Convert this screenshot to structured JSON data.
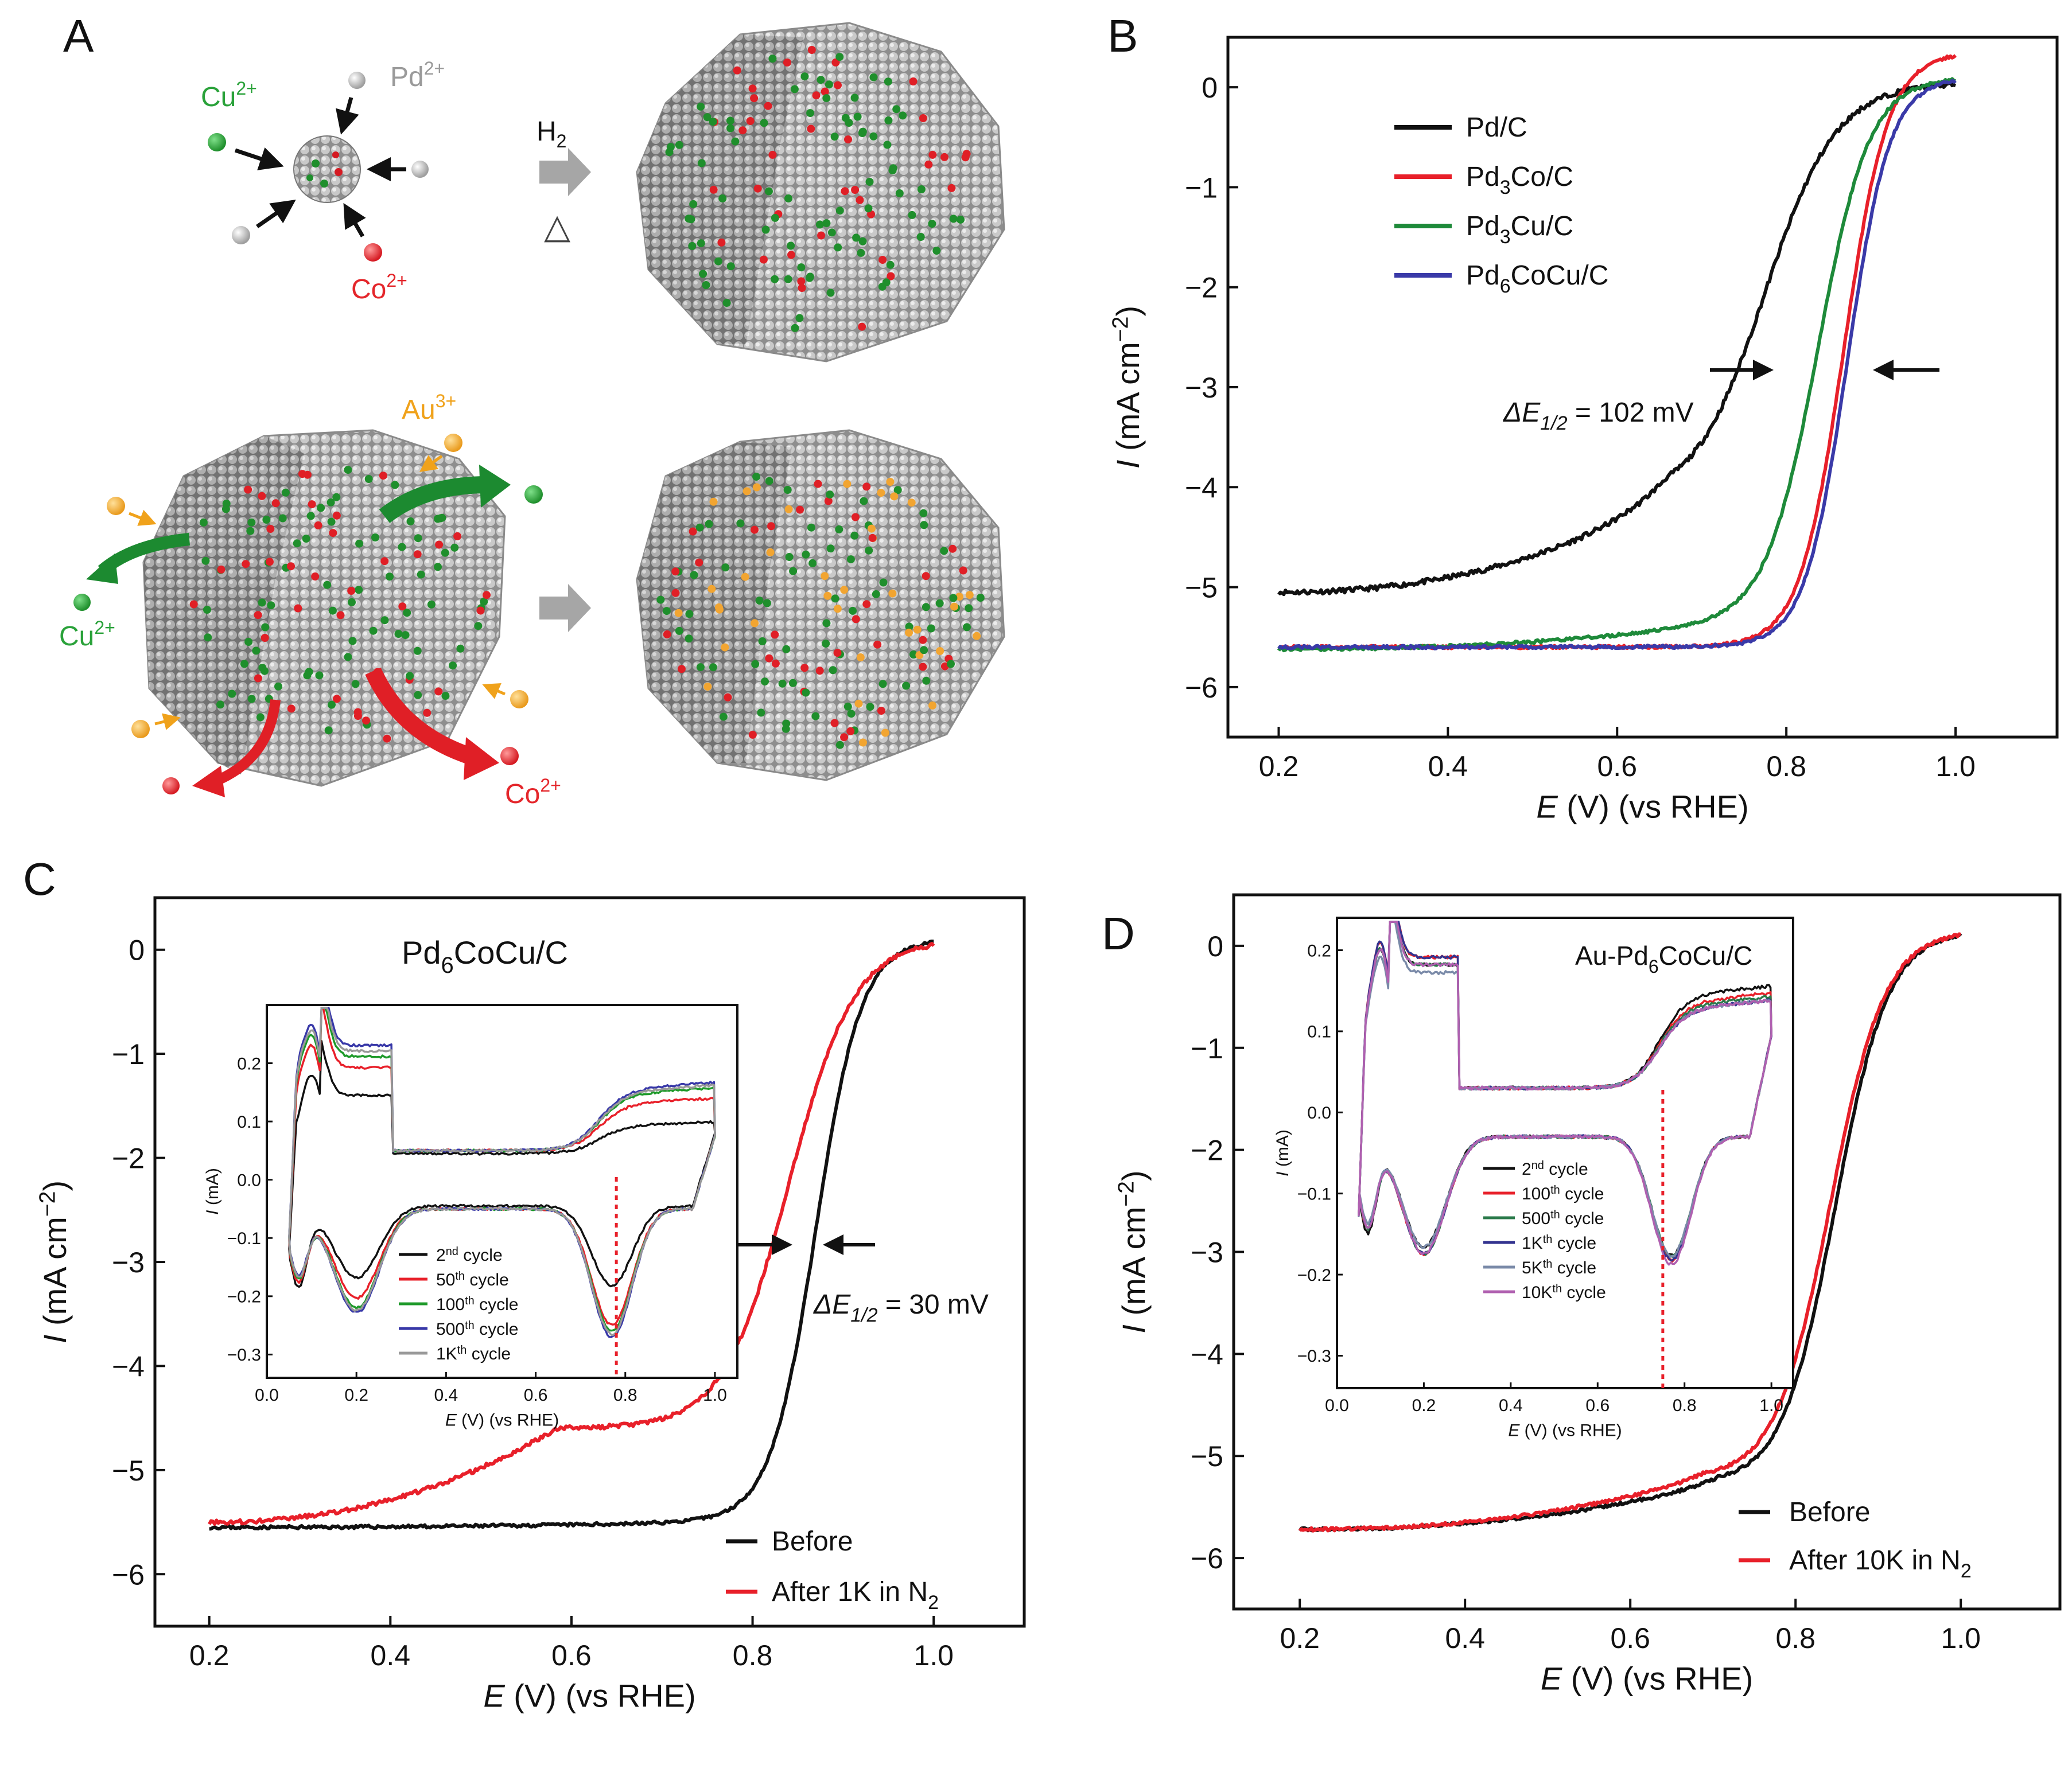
{
  "figure": {
    "panel_labels": {
      "a": "A",
      "b": "B",
      "c": "C",
      "d": "D"
    }
  },
  "schematic": {
    "ions": {
      "cu": "Cu",
      "pd": "Pd",
      "co": "Co",
      "au": "Au",
      "cu_charge": "2+",
      "pd_charge": "2+",
      "co_charge": "2+",
      "au_charge": "3+"
    },
    "reagent": "H",
    "reagent_sub": "2",
    "heat_symbol": "△",
    "colors": {
      "pd": "#a3a3a3",
      "cu": "#1f8f2c",
      "co": "#e01f26",
      "au": "#f2a531",
      "cu_text": "#2aa23a",
      "pd_text": "#9a9a9a",
      "co_text": "#e4262b",
      "au_text": "#f0a21b"
    }
  },
  "axis_common": {
    "xlabel_var": "E",
    "xlabel_rest": " (V) (vs RHE)",
    "ylabel_var": "I",
    "ylabel_rest": " (mA cm",
    "ylabel_exp": "−2",
    "ylabel_close": ")",
    "inset_ylabel_var": "I",
    "inset_ylabel_rest": " (mA)"
  },
  "panel_b": {
    "annotation": {
      "prefix": "ΔE",
      "sub": "1/2",
      "suffix": " = 102 mV"
    },
    "legend": [
      {
        "main": "Pd/C",
        "color": "#111111"
      },
      {
        "main": "Pd",
        "sub": "3",
        "rest": "Co/C",
        "color": "#e8202a"
      },
      {
        "main": "Pd",
        "sub": "3",
        "rest": "Cu/C",
        "color": "#1e8a3a"
      },
      {
        "main": "Pd",
        "sub": "6",
        "rest": "CoCu/C",
        "color": "#3a3aa8"
      }
    ]
  },
  "panel_c": {
    "title": {
      "main": "Pd",
      "sub": "6",
      "rest": "CoCu/C"
    },
    "annotation": {
      "prefix": "ΔE",
      "sub": "1/2",
      "suffix": " = 30 mV"
    },
    "legend": [
      {
        "label": "Before",
        "color": "#111111"
      },
      {
        "label": "After 1K in N",
        "sub": "2",
        "color": "#e8202a"
      }
    ],
    "inset_legend": [
      {
        "n": "2",
        "sup": "nd",
        "rest": " cycle",
        "color": "#111111"
      },
      {
        "n": "50",
        "sup": "th",
        "rest": " cycle",
        "color": "#e8202a"
      },
      {
        "n": "100",
        "sup": "th",
        "rest": " cycle",
        "color": "#1e9a2a"
      },
      {
        "n": "500",
        "sup": "th",
        "rest": " cycle",
        "color": "#3838a8"
      },
      {
        "n": "1K",
        "sup": "th",
        "rest": " cycle",
        "color": "#999999"
      }
    ]
  },
  "panel_d": {
    "title": "Au-Pd",
    "title_sub": "6",
    "title_rest": "CoCu/C",
    "legend": [
      {
        "label": "Before",
        "color": "#111111"
      },
      {
        "label": "After 10K in N",
        "sub": "2",
        "color": "#e8202a"
      }
    ],
    "inset_legend": [
      {
        "n": "2",
        "sup": "nd",
        "rest": " cycle",
        "color": "#111111"
      },
      {
        "n": "100",
        "sup": "th",
        "rest": " cycle",
        "color": "#e8202a"
      },
      {
        "n": "500",
        "sup": "th",
        "rest": " cycle",
        "color": "#2a7a4a"
      },
      {
        "n": "1K",
        "sup": "th",
        "rest": " cycle",
        "color": "#33338f"
      },
      {
        "n": "5K",
        "sup": "th",
        "rest": " cycle",
        "color": "#7a8aa8"
      },
      {
        "n": "10K",
        "sup": "th",
        "rest": " cycle",
        "color": "#b060b0"
      }
    ]
  },
  "chart_data": [
    {
      "id": "B",
      "type": "line",
      "xlabel": "E (V) (vs RHE)",
      "ylabel": "I (mA cm−2)",
      "xlim": [
        0.14,
        1.12
      ],
      "ylim": [
        -6.5,
        0.5
      ],
      "xticks": [
        0.2,
        0.4,
        0.6,
        0.8,
        1.0
      ],
      "yticks": [
        0,
        -1,
        -2,
        -3,
        -4,
        -5,
        -6
      ],
      "series": [
        {
          "name": "Pd/C",
          "color": "#111111",
          "model": {
            "a": -5.05,
            "b": 0.9,
            "slope": 0.15,
            "E0": 0.775,
            "w": 0.042,
            "noise": 0.025
          }
        },
        {
          "name": "Pd3Co/C",
          "color": "#e8202a",
          "model": {
            "a": -5.6,
            "b": 0.02,
            "slope": 0.02,
            "E0": 0.868,
            "w": 0.026,
            "noise": 0.015,
            "top": 0.35
          }
        },
        {
          "name": "Pd3Cu/C",
          "color": "#1e8a3a",
          "model": {
            "a": -5.62,
            "b": 0.35,
            "slope": 0.08,
            "E0": 0.838,
            "w": 0.03,
            "noise": 0.015,
            "top": 0.1
          }
        },
        {
          "name": "Pd6CoCu/C",
          "color": "#3a3aa8",
          "model": {
            "a": -5.6,
            "b": 0.02,
            "slope": 0.02,
            "E0": 0.872,
            "w": 0.025,
            "noise": 0.015,
            "top": 0.1
          }
        }
      ]
    },
    {
      "id": "C",
      "type": "line",
      "xlabel": "E (V) (vs RHE)",
      "ylabel": "I (mA cm−2)",
      "xlim": [
        0.14,
        1.1
      ],
      "ylim": [
        -6.5,
        0.5
      ],
      "xticks": [
        0.2,
        0.4,
        0.6,
        0.8,
        1.0
      ],
      "yticks": [
        0,
        -1,
        -2,
        -3,
        -4,
        -5,
        -6
      ],
      "series": [
        {
          "name": "Before",
          "color": "#111111",
          "model": {
            "a": -5.55,
            "b": 0.1,
            "slope": 0.05,
            "E0": 0.87,
            "w": 0.025,
            "noise": 0.015,
            "top": 0.1
          }
        },
        {
          "name": "After 1K in N2",
          "color": "#e8202a",
          "model": {
            "a": -5.5,
            "b": 0.9,
            "slope": 0.22,
            "E0": 0.84,
            "w": 0.036,
            "noise": 0.02,
            "top": 0.1
          }
        }
      ],
      "inset": {
        "xlabel": "E (V) (vs RHE)",
        "ylabel": "I (mA)",
        "xlim": [
          0.0,
          1.05
        ],
        "ylim": [
          -0.34,
          0.3
        ],
        "xticks": [
          0.0,
          0.2,
          0.4,
          0.6,
          0.8,
          1.0
        ],
        "yticks": [
          0.2,
          0.1,
          0.0,
          -0.1,
          -0.2,
          -0.3
        ],
        "marker_x": 0.78,
        "cycles": [
          {
            "name": "2nd cycle",
            "color": "#111111",
            "h1": 0.15,
            "h2": 0.0,
            "dl": 0.045,
            "o1": 0.06,
            "o2": -0.13,
            "up1": -0.19,
            "up2": -0.27
          },
          {
            "name": "50th cycle",
            "color": "#e8202a",
            "h1": 0.2,
            "h2": 0.06,
            "dl": 0.05,
            "o1": 0.1,
            "o2": -0.19,
            "up1": -0.23,
            "up2": -0.25
          },
          {
            "name": "100th cycle",
            "color": "#1e9a2a",
            "h1": 0.22,
            "h2": 0.08,
            "dl": 0.05,
            "o1": 0.12,
            "o2": -0.2,
            "up1": -0.25,
            "up2": -0.24
          },
          {
            "name": "500th cycle",
            "color": "#3838a8",
            "h1": 0.24,
            "h2": 0.09,
            "dl": 0.05,
            "o1": 0.13,
            "o2": -0.21,
            "up1": -0.26,
            "up2": -0.23
          },
          {
            "name": "1Kth cycle",
            "color": "#999999",
            "h1": 0.23,
            "h2": 0.085,
            "dl": 0.05,
            "o1": 0.125,
            "o2": -0.205,
            "up1": -0.255,
            "up2": -0.235
          }
        ]
      }
    },
    {
      "id": "D",
      "type": "line",
      "xlabel": "E (V) (vs RHE)",
      "ylabel": "I (mA cm−2)",
      "xlim": [
        0.12,
        1.12
      ],
      "ylim": [
        -6.5,
        0.5
      ],
      "xticks": [
        0.2,
        0.4,
        0.6,
        0.8,
        1.0
      ],
      "yticks": [
        0,
        -1,
        -2,
        -3,
        -4,
        -5,
        -6
      ],
      "series": [
        {
          "name": "Before",
          "color": "#111111",
          "model": {
            "a": -5.72,
            "b": 0.45,
            "slope": 0.12,
            "E0": 0.848,
            "w": 0.032,
            "noise": 0.015,
            "top": 0.15
          }
        },
        {
          "name": "After 10K in N2",
          "color": "#e8202a",
          "model": {
            "a": -5.72,
            "b": 0.5,
            "slope": 0.13,
            "E0": 0.842,
            "w": 0.033,
            "noise": 0.015,
            "top": 0.15
          }
        }
      ],
      "inset": {
        "xlabel": "E (V) (vs RHE)",
        "ylabel": "I (mA)",
        "xlim": [
          0.0,
          1.05
        ],
        "ylim": [
          -0.34,
          0.24
        ],
        "xticks": [
          0.0,
          0.2,
          0.4,
          0.6,
          0.8,
          1.0
        ],
        "yticks": [
          0.2,
          0.1,
          0.0,
          -0.1,
          -0.2,
          -0.3
        ],
        "marker_x": 0.75,
        "cycles": [
          {
            "name": "2nd cycle",
            "color": "#111111",
            "h1": 0.19,
            "h2": 0.03,
            "dl": 0.03,
            "o1": 0.14,
            "o2": -0.14,
            "up1": -0.19,
            "up2": -0.22
          },
          {
            "name": "100th cycle",
            "color": "#e8202a",
            "h1": 0.2,
            "h2": 0.03,
            "dl": 0.03,
            "o1": 0.13,
            "o2": -0.145,
            "up1": -0.2,
            "up2": -0.21
          },
          {
            "name": "500th cycle",
            "color": "#2a7a4a",
            "h1": 0.19,
            "h2": 0.03,
            "dl": 0.03,
            "o1": 0.125,
            "o2": -0.14,
            "up1": -0.2,
            "up2": -0.21
          },
          {
            "name": "1Kth cycle",
            "color": "#33338f",
            "h1": 0.2,
            "h2": 0.03,
            "dl": 0.03,
            "o1": 0.12,
            "o2": -0.145,
            "up1": -0.2,
            "up2": -0.21
          },
          {
            "name": "5Kth cycle",
            "color": "#7a8aa8",
            "h1": 0.18,
            "h2": 0.03,
            "dl": 0.03,
            "o1": 0.12,
            "o2": -0.14,
            "up1": -0.19,
            "up2": -0.2
          },
          {
            "name": "10Kth cycle",
            "color": "#b060b0",
            "h1": 0.19,
            "h2": 0.03,
            "dl": 0.03,
            "o1": 0.12,
            "o2": -0.15,
            "up1": -0.2,
            "up2": -0.21
          }
        ]
      }
    }
  ]
}
